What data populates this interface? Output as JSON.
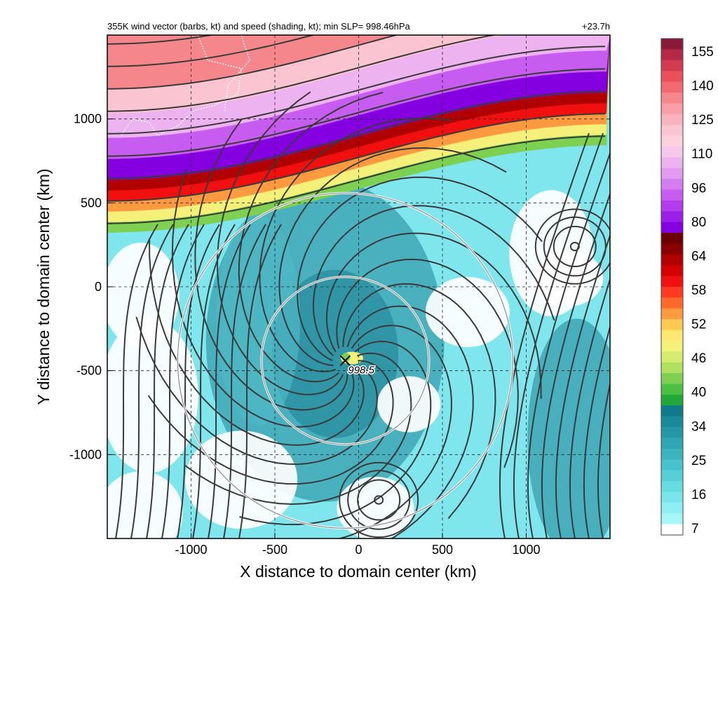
{
  "chart_data": {
    "type": "heatmap",
    "title": "355K wind vector (barbs, kt) and speed (shading, kt); min SLP= 998.46hPa",
    "time_label": "+23.7h",
    "xlabel": "X distance to domain center (km)",
    "ylabel": "Y distance to domain center (km)",
    "xlim": [
      -1500,
      1500
    ],
    "ylim": [
      -1500,
      1500
    ],
    "xticks": [
      -1000,
      -500,
      0,
      500,
      1000
    ],
    "yticks": [
      1000,
      500,
      0,
      -500,
      -1000
    ],
    "grid": "dashed",
    "colorbar": {
      "labels": [
        155,
        140,
        125,
        110,
        96,
        80,
        64,
        58,
        52,
        46,
        40,
        34,
        25,
        16,
        7
      ],
      "colors": [
        "#8b1a3a",
        "#b52846",
        "#d43a50",
        "#ea5058",
        "#f26a70",
        "#f5868c",
        "#f79ea6",
        "#f9b3bd",
        "#fac4d0",
        "#fbd3df",
        "#f5c7ec",
        "#edb2f0",
        "#e39af1",
        "#d67cf1",
        "#c65cf0",
        "#b13ded",
        "#9a1fe8",
        "#8400e0",
        "#6b0000",
        "#8b0000",
        "#b00000",
        "#d40000",
        "#f01010",
        "#ff3a20",
        "#ff6a2a",
        "#ff9a40",
        "#ffc850",
        "#ffe870",
        "#f4f07a",
        "#d6ec70",
        "#b0e060",
        "#7ed050",
        "#4cc040",
        "#20a838",
        "#0e7a8c",
        "#1a8a9a",
        "#2598a8",
        "#30a6b4",
        "#3cb4c0",
        "#48c2cc",
        "#56cfd6",
        "#66dbe0",
        "#78e6ea",
        "#8cf0f2",
        "#a8f7f8",
        "#ffffff"
      ]
    },
    "storm_center": {
      "x": -80,
      "y": -440,
      "label": "998.5"
    },
    "radius_circles_km": [
      500,
      1000
    ],
    "jet": {
      "axis_y_at_xmin": 720,
      "axis_y_at_xmax": 1240,
      "core_speed_kt": 64
    },
    "anticyclones": [
      {
        "x": 1290,
        "y": 240
      },
      {
        "x": 120,
        "y": -1270
      }
    ]
  }
}
